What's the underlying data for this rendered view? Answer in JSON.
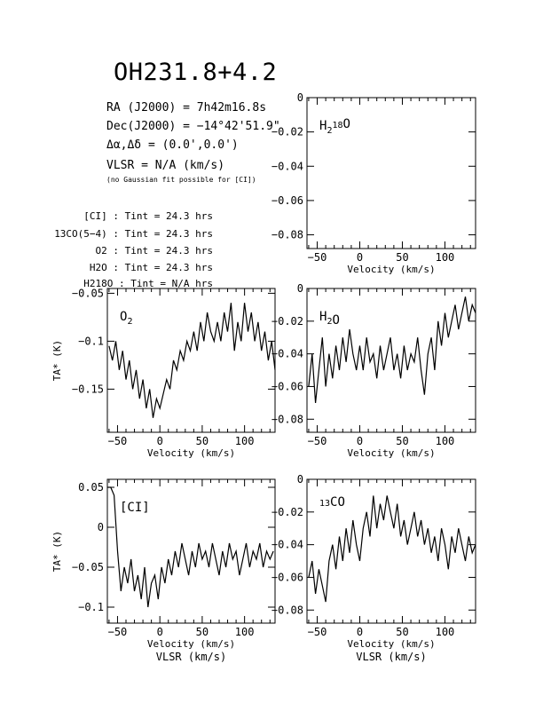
{
  "header": {
    "title": "OH231.8+4.2",
    "ra_label": "RA (J2000) =",
    "ra_value": "7h42m16.8s",
    "dec_label": "Dec(J2000) =",
    "dec_value": "−14°42'51.9\"",
    "offset_label": "Δα,Δδ =",
    "offset_value": "(0.0',0.0')",
    "vlsr_label": "VLSR",
    "vlsr_value": "= N/A  (km/s)",
    "fit_note": "(no Gaussian fit possible for [CI])",
    "int_times": [
      {
        "line": "[CI]",
        "value": "24.3 hrs"
      },
      {
        "line": "13CO(5−4)",
        "value": "24.3 hrs"
      },
      {
        "line": "O2",
        "value": "24.3 hrs"
      },
      {
        "line": "H2O",
        "value": "24.3 hrs"
      },
      {
        "line": "H218O",
        "value": "N/A hrs"
      }
    ]
  },
  "axis_titles": {
    "xlabel": "Velocity (km/s)",
    "xlabel_bottom": "VLSR (km/s)",
    "ylabel": "TA* (K)"
  },
  "chart_data": [
    {
      "type": "line",
      "panel": "H218O",
      "label": "H218O",
      "xlim": [
        -62,
        136
      ],
      "ylim": [
        -0.088,
        0
      ],
      "xticks": [
        -50,
        0,
        50,
        100
      ],
      "yticks": [
        0,
        -0.02,
        -0.04,
        -0.06,
        -0.08
      ],
      "ytick_labels": [
        "0",
        "−0.02",
        "−0.04",
        "−0.06",
        "−0.08"
      ],
      "x": [],
      "y": []
    },
    {
      "type": "line",
      "panel": "O2",
      "label": "O2",
      "xlim": [
        -62,
        136
      ],
      "ylim": [
        -0.195,
        -0.045
      ],
      "xticks": [
        -50,
        0,
        50,
        100
      ],
      "yticks": [
        -0.05,
        -0.1,
        -0.15
      ],
      "ytick_labels": [
        "−0.05",
        "−0.1",
        "−0.15"
      ],
      "x": [
        -60,
        -56,
        -52,
        -48,
        -44,
        -40,
        -36,
        -32,
        -28,
        -24,
        -20,
        -16,
        -12,
        -8,
        -4,
        0,
        4,
        8,
        12,
        16,
        20,
        24,
        28,
        32,
        36,
        40,
        44,
        48,
        52,
        56,
        60,
        64,
        68,
        72,
        76,
        80,
        84,
        88,
        92,
        96,
        100,
        104,
        108,
        112,
        116,
        120,
        124,
        128,
        132,
        136
      ],
      "y": [
        -0.105,
        -0.12,
        -0.1,
        -0.13,
        -0.11,
        -0.14,
        -0.12,
        -0.15,
        -0.13,
        -0.16,
        -0.14,
        -0.17,
        -0.15,
        -0.18,
        -0.16,
        -0.17,
        -0.155,
        -0.14,
        -0.15,
        -0.12,
        -0.13,
        -0.11,
        -0.12,
        -0.1,
        -0.11,
        -0.09,
        -0.11,
        -0.08,
        -0.1,
        -0.07,
        -0.09,
        -0.1,
        -0.08,
        -0.1,
        -0.07,
        -0.09,
        -0.06,
        -0.11,
        -0.08,
        -0.1,
        -0.06,
        -0.09,
        -0.07,
        -0.1,
        -0.08,
        -0.11,
        -0.09,
        -0.12,
        -0.1,
        -0.13
      ]
    },
    {
      "type": "line",
      "panel": "H2O",
      "label": "H2O",
      "xlim": [
        -62,
        136
      ],
      "ylim": [
        -0.088,
        0
      ],
      "xticks": [
        -50,
        0,
        50,
        100
      ],
      "yticks": [
        0,
        -0.02,
        -0.04,
        -0.06,
        -0.08
      ],
      "ytick_labels": [
        "0",
        "−0.02",
        "−0.04",
        "−0.06",
        "−0.08"
      ],
      "x": [
        -60,
        -56,
        -52,
        -48,
        -44,
        -40,
        -36,
        -32,
        -28,
        -24,
        -20,
        -16,
        -12,
        -8,
        -4,
        0,
        4,
        8,
        12,
        16,
        20,
        24,
        28,
        32,
        36,
        40,
        44,
        48,
        52,
        56,
        60,
        64,
        68,
        72,
        76,
        80,
        84,
        88,
        92,
        96,
        100,
        104,
        108,
        112,
        116,
        120,
        124,
        128,
        132,
        136
      ],
      "y": [
        -0.06,
        -0.04,
        -0.07,
        -0.05,
        -0.03,
        -0.06,
        -0.04,
        -0.055,
        -0.035,
        -0.05,
        -0.03,
        -0.045,
        -0.025,
        -0.04,
        -0.05,
        -0.035,
        -0.05,
        -0.03,
        -0.045,
        -0.04,
        -0.055,
        -0.035,
        -0.05,
        -0.04,
        -0.03,
        -0.05,
        -0.04,
        -0.055,
        -0.035,
        -0.05,
        -0.04,
        -0.045,
        -0.03,
        -0.05,
        -0.065,
        -0.04,
        -0.03,
        -0.05,
        -0.02,
        -0.035,
        -0.015,
        -0.03,
        -0.02,
        -0.01,
        -0.025,
        -0.015,
        -0.005,
        -0.02,
        -0.01,
        -0.015
      ]
    },
    {
      "type": "line",
      "panel": "[CI]",
      "label": "[CI]",
      "xlim": [
        -62,
        136
      ],
      "ylim": [
        -0.12,
        0.06
      ],
      "xticks": [
        -50,
        0,
        50,
        100
      ],
      "yticks": [
        0.05,
        0,
        -0.05,
        -0.1
      ],
      "ytick_labels": [
        "0.05",
        "0",
        "−0.05",
        "−0.1"
      ],
      "x": [
        -62,
        -58,
        -54,
        -50,
        -46,
        -42,
        -38,
        -34,
        -30,
        -26,
        -22,
        -18,
        -14,
        -10,
        -6,
        -2,
        2,
        6,
        10,
        14,
        18,
        22,
        26,
        30,
        34,
        38,
        42,
        46,
        50,
        54,
        58,
        62,
        66,
        70,
        74,
        78,
        82,
        86,
        90,
        94,
        98,
        102,
        106,
        110,
        114,
        118,
        122,
        126,
        130,
        134
      ],
      "y": [
        0.05,
        0.05,
        0.04,
        -0.03,
        -0.08,
        -0.05,
        -0.07,
        -0.04,
        -0.08,
        -0.06,
        -0.09,
        -0.05,
        -0.1,
        -0.07,
        -0.06,
        -0.09,
        -0.05,
        -0.07,
        -0.04,
        -0.06,
        -0.03,
        -0.05,
        -0.02,
        -0.04,
        -0.06,
        -0.03,
        -0.05,
        -0.02,
        -0.04,
        -0.03,
        -0.05,
        -0.02,
        -0.04,
        -0.06,
        -0.03,
        -0.05,
        -0.02,
        -0.04,
        -0.03,
        -0.06,
        -0.04,
        -0.02,
        -0.05,
        -0.03,
        -0.04,
        -0.02,
        -0.05,
        -0.03,
        -0.04,
        -0.03
      ]
    },
    {
      "type": "line",
      "panel": "13CO",
      "label": "13CO",
      "xlim": [
        -62,
        136
      ],
      "ylim": [
        -0.088,
        0
      ],
      "xticks": [
        -50,
        0,
        50,
        100
      ],
      "yticks": [
        0,
        -0.02,
        -0.04,
        -0.06,
        -0.08
      ],
      "ytick_labels": [
        "0",
        "−0.02",
        "−0.04",
        "−0.06",
        "−0.08"
      ],
      "x": [
        -60,
        -56,
        -52,
        -48,
        -44,
        -40,
        -36,
        -32,
        -28,
        -24,
        -20,
        -16,
        -12,
        -8,
        -4,
        0,
        4,
        8,
        12,
        16,
        20,
        24,
        28,
        32,
        36,
        40,
        44,
        48,
        52,
        56,
        60,
        64,
        68,
        72,
        76,
        80,
        84,
        88,
        92,
        96,
        100,
        104,
        108,
        112,
        116,
        120,
        124,
        128,
        132,
        136
      ],
      "y": [
        -0.06,
        -0.05,
        -0.07,
        -0.055,
        -0.065,
        -0.075,
        -0.05,
        -0.04,
        -0.055,
        -0.035,
        -0.05,
        -0.03,
        -0.045,
        -0.025,
        -0.04,
        -0.05,
        -0.03,
        -0.02,
        -0.035,
        -0.01,
        -0.03,
        -0.015,
        -0.025,
        -0.01,
        -0.02,
        -0.03,
        -0.015,
        -0.035,
        -0.025,
        -0.04,
        -0.03,
        -0.02,
        -0.035,
        -0.025,
        -0.04,
        -0.03,
        -0.045,
        -0.035,
        -0.05,
        -0.03,
        -0.04,
        -0.055,
        -0.035,
        -0.045,
        -0.03,
        -0.04,
        -0.05,
        -0.035,
        -0.045,
        -0.04
      ]
    }
  ]
}
